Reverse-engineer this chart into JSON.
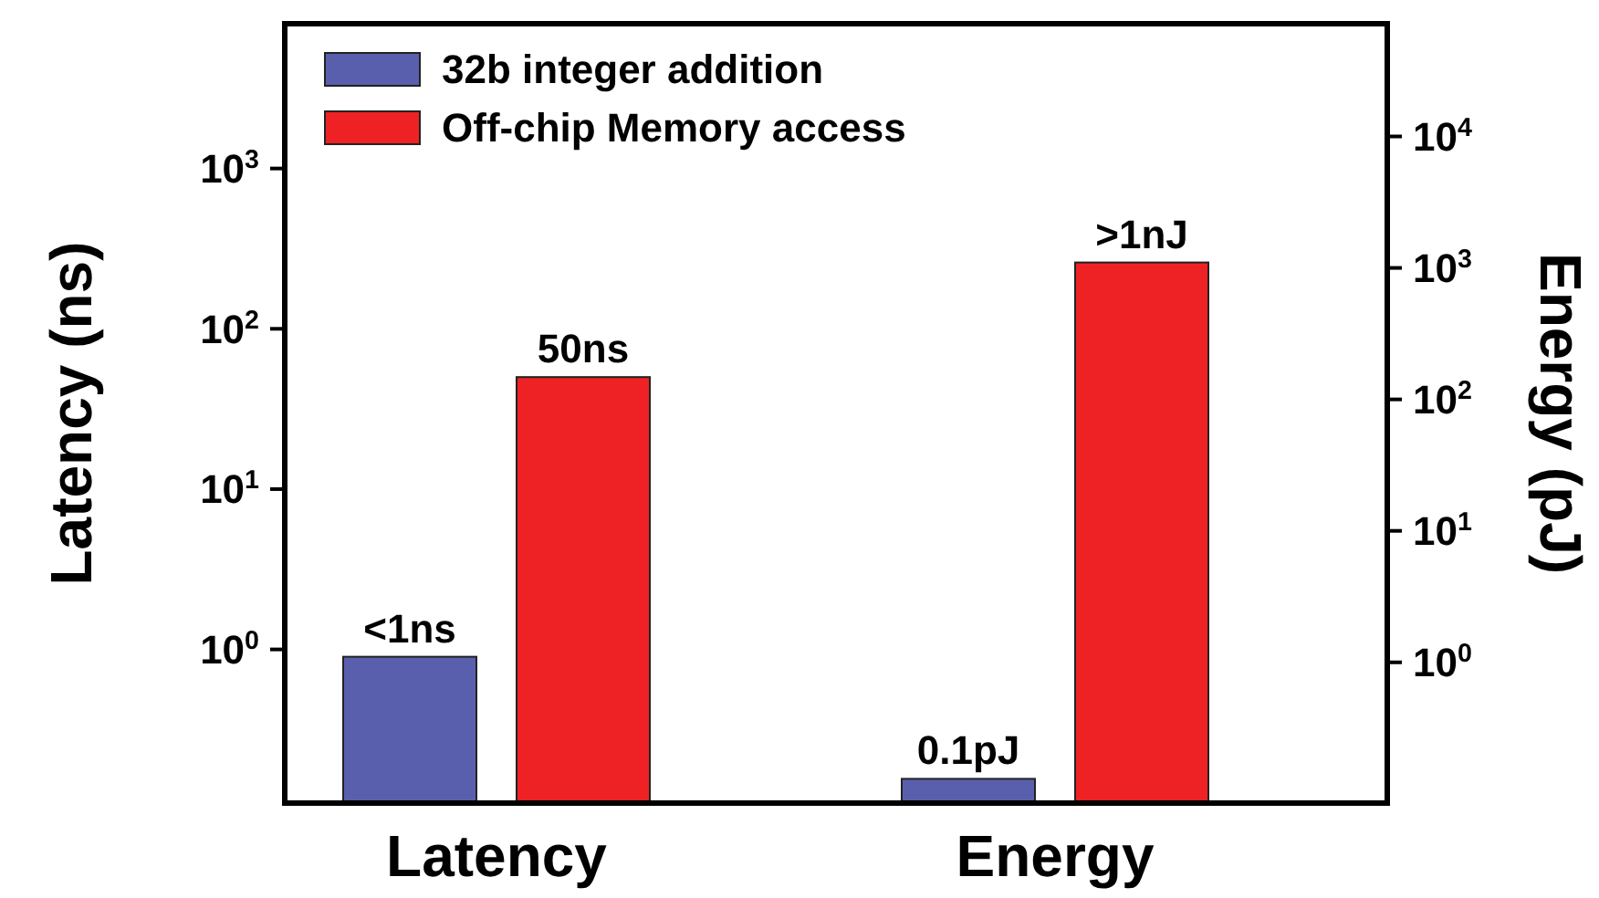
{
  "chart_data": [
    {
      "type": "bar",
      "log": true,
      "categories": [
        "Latency"
      ],
      "ylabel": "Latency (ns)",
      "ylim": [
        0.11,
        8000
      ],
      "yticks": [
        {
          "value": 1,
          "label": "10$^{0}$"
        },
        {
          "value": 10,
          "label": "10$^{1}$"
        },
        {
          "value": 100,
          "label": "10$^{2}$"
        },
        {
          "value": 1000,
          "label": "10$^{3}$"
        }
      ],
      "legend": "top",
      "series": [
        {
          "name": "32b integer addition",
          "color": "#5a5fad",
          "values": [
            0.9
          ],
          "value_labels": [
            "<1ns"
          ]
        },
        {
          "name": "Off-chip Memory access",
          "color": "#ee2224",
          "values": [
            50
          ],
          "value_labels": [
            "50ns"
          ]
        }
      ]
    },
    {
      "type": "bar",
      "log": "y2",
      "categories": [
        "Energy"
      ],
      "y2label": "Energy (pJ)",
      "y2lim": [
        0.085,
        72000
      ],
      "y2ticks": [
        {
          "value": 1,
          "label": "10$^{0}$"
        },
        {
          "value": 10,
          "label": "10$^{1}$"
        },
        {
          "value": 100,
          "label": "10$^{2}$"
        },
        {
          "value": 1000,
          "label": "10$^{3}$"
        },
        {
          "value": 10000,
          "label": "10$^{4}$"
        }
      ],
      "series": [
        {
          "color": "#5a5fad",
          "axis": "y2",
          "values": [
            0.13
          ],
          "value_labels": [
            "0.1pJ"
          ]
        },
        {
          "color": "#ee2224",
          "axis": "y2",
          "values": [
            1100
          ],
          "value_labels": [
            ">1nJ"
          ]
        }
      ]
    }
  ]
}
